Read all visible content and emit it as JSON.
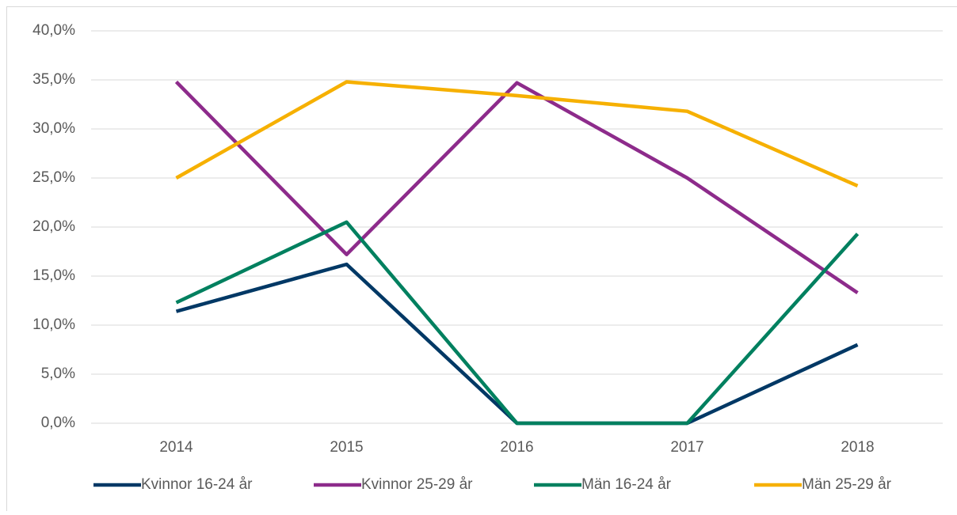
{
  "chart_data": {
    "type": "line",
    "categories": [
      "2014",
      "2015",
      "2016",
      "2017",
      "2018"
    ],
    "series": [
      {
        "name": "Kvinnor 16-24 år",
        "color": "#003865",
        "values": [
          11.4,
          16.2,
          0,
          0,
          8.0
        ]
      },
      {
        "name": "Kvinnor 25-29 år",
        "color": "#8d2b8b",
        "values": [
          34.8,
          17.2,
          34.7,
          25.0,
          13.3
        ]
      },
      {
        "name": "Män 16-24 år",
        "color": "#00805f",
        "values": [
          12.3,
          20.5,
          0,
          0,
          19.3
        ]
      },
      {
        "name": "Män 25-29 år",
        "color": "#f6b000",
        "values": [
          25.0,
          34.8,
          33.4,
          31.8,
          24.2
        ]
      }
    ],
    "ylim": [
      0,
      40
    ],
    "yticks": [
      {
        "value": 0,
        "label": "0,0%"
      },
      {
        "value": 5,
        "label": "5,0%"
      },
      {
        "value": 10,
        "label": "10,0%"
      },
      {
        "value": 15,
        "label": "15,0%"
      },
      {
        "value": 20,
        "label": "20,0%"
      },
      {
        "value": 25,
        "label": "25,0%"
      },
      {
        "value": 30,
        "label": "30,0%"
      },
      {
        "value": 35,
        "label": "35,0%"
      },
      {
        "value": 40,
        "label": "40,0%"
      }
    ],
    "grid": true,
    "legend": "bottom"
  }
}
